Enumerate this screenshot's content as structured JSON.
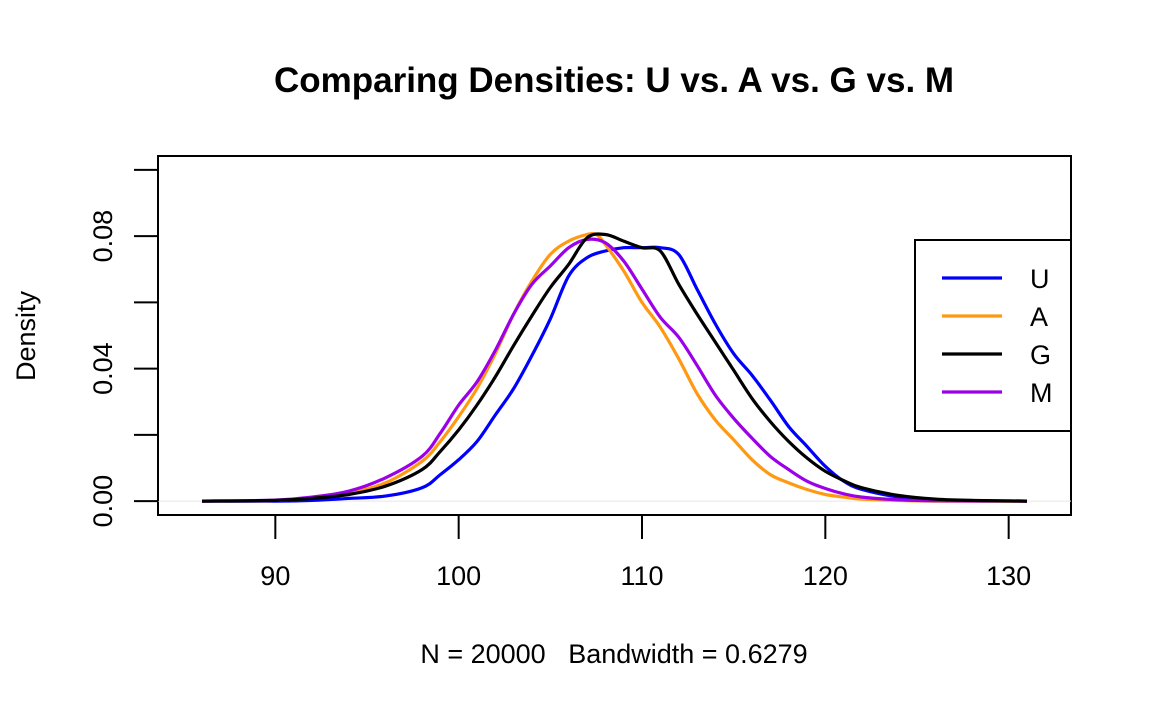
{
  "chart_data": {
    "type": "line",
    "title": "Comparing Densities: U vs. A vs. G vs. M",
    "xlabel": "N = 20000   Bandwidth = 0.6279",
    "ylabel": "Density",
    "xlim": [
      83.6,
      133.4
    ],
    "ylim": [
      -0.0042,
      0.1042
    ],
    "x_ticks": [
      90,
      100,
      110,
      120,
      130
    ],
    "x_tick_labels": [
      "90",
      "100",
      "110",
      "120",
      "130"
    ],
    "y_ticks": [
      0.0,
      0.02,
      0.04,
      0.06,
      0.08,
      0.1
    ],
    "y_tick_labels": [
      "0.00",
      "",
      "0.04",
      "",
      "0.08",
      ""
    ],
    "legend_position": "right",
    "grid": false,
    "series": [
      {
        "name": "U",
        "color": "#0000FF",
        "x": [
          86,
          90,
          92,
          94,
          96,
          98,
          99,
          100,
          101,
          102,
          103,
          104,
          105,
          106,
          107,
          108,
          109,
          110,
          111,
          112,
          113,
          114,
          115,
          116,
          117,
          118,
          119,
          120,
          121,
          122,
          124,
          126,
          128,
          131
        ],
        "y": [
          0,
          0,
          0.0002,
          0.0008,
          0.0015,
          0.004,
          0.008,
          0.0125,
          0.018,
          0.026,
          0.034,
          0.044,
          0.055,
          0.068,
          0.0735,
          0.0755,
          0.0765,
          0.0765,
          0.0765,
          0.0745,
          0.064,
          0.0535,
          0.0445,
          0.038,
          0.0305,
          0.0225,
          0.0165,
          0.0105,
          0.006,
          0.0035,
          0.0012,
          0.0003,
          0.0001,
          0
        ]
      },
      {
        "name": "A",
        "color": "#FF9912",
        "x": [
          86,
          90,
          92,
          94,
          96,
          98,
          99,
          100,
          101,
          102,
          103,
          104,
          105,
          106,
          107,
          107.5,
          108,
          109,
          110,
          111,
          112,
          113,
          114,
          115,
          116,
          117,
          118,
          119,
          120,
          121,
          122,
          124,
          126,
          131
        ],
        "y": [
          0,
          0.0002,
          0.001,
          0.0025,
          0.0055,
          0.012,
          0.018,
          0.0255,
          0.034,
          0.0445,
          0.0565,
          0.0665,
          0.0745,
          0.0785,
          0.0805,
          0.0805,
          0.0775,
          0.0695,
          0.06,
          0.0525,
          0.043,
          0.0325,
          0.0245,
          0.0185,
          0.0125,
          0.008,
          0.0055,
          0.0035,
          0.002,
          0.0012,
          0.0006,
          0.0002,
          0,
          0
        ]
      },
      {
        "name": "G",
        "color": "#000000",
        "x": [
          86,
          90,
          92,
          94,
          96,
          98,
          99,
          100,
          101,
          102,
          103,
          104,
          105,
          106,
          107,
          108,
          109,
          110,
          111,
          112,
          113,
          114,
          115,
          116,
          117,
          118,
          119,
          120,
          121,
          122,
          124,
          126,
          128,
          131
        ],
        "y": [
          0,
          0.0002,
          0.0008,
          0.002,
          0.0045,
          0.0095,
          0.015,
          0.0215,
          0.029,
          0.0375,
          0.047,
          0.056,
          0.0645,
          0.0715,
          0.0795,
          0.0805,
          0.0785,
          0.0765,
          0.0755,
          0.0655,
          0.0565,
          0.048,
          0.0395,
          0.031,
          0.024,
          0.018,
          0.013,
          0.009,
          0.0062,
          0.004,
          0.0017,
          0.0006,
          0.0002,
          0
        ]
      },
      {
        "name": "M",
        "color": "#9B00E8",
        "x": [
          86,
          90,
          92,
          94,
          96,
          98,
          99,
          100,
          101,
          102,
          103,
          104,
          105,
          106,
          107,
          108,
          109,
          110,
          111,
          112,
          113,
          114,
          115,
          116,
          117,
          118,
          119,
          120,
          121,
          122,
          124,
          126,
          131
        ],
        "y": [
          0,
          0.0003,
          0.0012,
          0.003,
          0.007,
          0.0135,
          0.0205,
          0.029,
          0.036,
          0.0455,
          0.0565,
          0.0655,
          0.071,
          0.0765,
          0.079,
          0.078,
          0.0725,
          0.064,
          0.0555,
          0.0495,
          0.041,
          0.032,
          0.025,
          0.019,
          0.0135,
          0.0095,
          0.006,
          0.0038,
          0.0022,
          0.0012,
          0.0004,
          0.0001,
          0
        ]
      }
    ]
  }
}
